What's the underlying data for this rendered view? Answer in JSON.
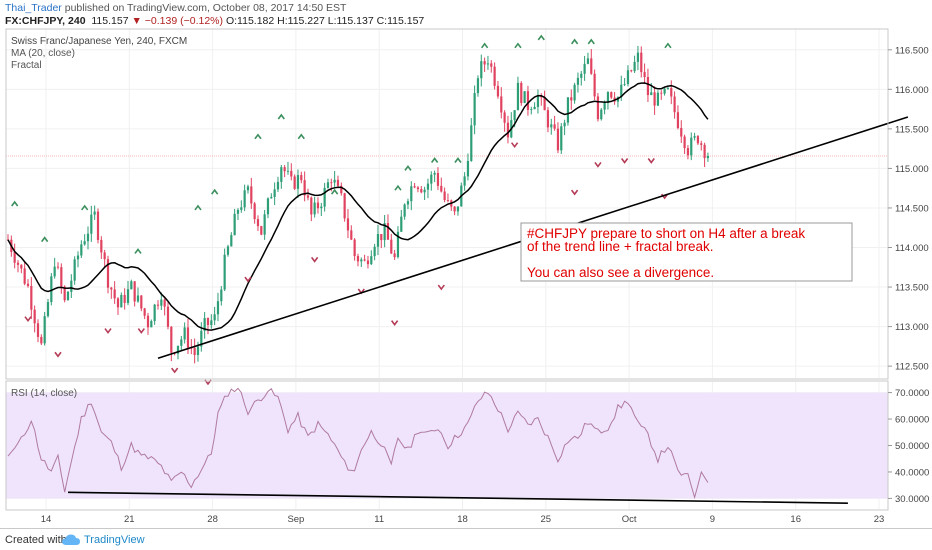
{
  "header": {
    "user": "Thai_Trader",
    "published": "published on TradingView.com, October 08, 2017 14:50 EST",
    "symbol": "FX:CHFJPY, 240",
    "price": "115.157",
    "change": "▼ −0.139 (−0.12%)",
    "ohlc": "O:115.182 H:115.227 L:115.137 C:115.157"
  },
  "legend": {
    "instrument": "Swiss Franc/Japanese Yen, 240, FXCM",
    "ma": "MA (20, close)",
    "fractal": "Fractal",
    "rsi": "RSI (14, close)"
  },
  "annotation": {
    "line1": "#CHFJPY prepare to short on H4 after a break",
    "line2": "of the trend line + fractal break.",
    "line3": "You can also see a divergence."
  },
  "footer": {
    "created": "Created with",
    "brand": "TradingView"
  },
  "colors": {
    "bull": "#2e9e76",
    "bear": "#e0425f",
    "annotation_text": "#e00000",
    "rsi_band": "#efe4fc",
    "rsi_line": "#b07aa0",
    "ma": "#000000",
    "fractal_up": "#3a8f5c",
    "fractal_down": "#b53b57"
  },
  "chart_data": [
    {
      "type": "candlestick",
      "title": "Swiss Franc/Japanese Yen, 240, FXCM",
      "ylim": [
        112.35,
        116.75
      ],
      "y_ticks": [
        "116.500",
        "116.000",
        "115.500",
        "115.000",
        "114.500",
        "114.000",
        "113.500",
        "113.000",
        "112.500"
      ],
      "x_ticks": [
        "14",
        "21",
        "28",
        "Sep",
        "11",
        "18",
        "25",
        "Oct",
        "9",
        "16",
        "23"
      ],
      "last_price": 115.157,
      "price_path": [
        [
          0,
          114.1
        ],
        [
          6,
          113.5
        ],
        [
          10,
          112.75
        ],
        [
          14,
          113.85
        ],
        [
          17,
          113.3
        ],
        [
          22,
          114.05
        ],
        [
          26,
          114.4
        ],
        [
          30,
          113.6
        ],
        [
          33,
          113.25
        ],
        [
          37,
          113.5
        ],
        [
          42,
          113.05
        ],
        [
          46,
          113.45
        ],
        [
          49,
          112.7
        ],
        [
          53,
          112.9
        ],
        [
          56,
          112.65
        ],
        [
          59,
          113.0
        ],
        [
          62,
          113.1
        ],
        [
          65,
          113.8
        ],
        [
          69,
          114.5
        ],
        [
          72,
          114.7
        ],
        [
          76,
          114.2
        ],
        [
          79,
          114.7
        ],
        [
          82,
          115.05
        ],
        [
          85,
          114.8
        ],
        [
          88,
          114.9
        ],
        [
          91,
          114.4
        ],
        [
          94,
          114.6
        ],
        [
          97,
          114.9
        ],
        [
          100,
          114.6
        ],
        [
          104,
          113.9
        ],
        [
          107,
          113.8
        ],
        [
          110,
          114.1
        ],
        [
          113,
          114.2
        ],
        [
          116,
          113.85
        ],
        [
          119,
          114.6
        ],
        [
          122,
          114.85
        ],
        [
          125,
          114.75
        ],
        [
          128,
          114.95
        ],
        [
          131,
          114.6
        ],
        [
          134,
          114.4
        ],
        [
          137,
          114.9
        ],
        [
          139,
          115.5
        ],
        [
          141,
          116.2
        ],
        [
          144,
          116.4
        ],
        [
          147,
          116.0
        ],
        [
          150,
          115.45
        ],
        [
          153,
          116.0
        ],
        [
          156,
          115.8
        ],
        [
          159,
          115.9
        ],
        [
          162,
          115.6
        ],
        [
          165,
          115.3
        ],
        [
          168,
          115.8
        ],
        [
          171,
          116.1
        ],
        [
          174,
          116.35
        ],
        [
          177,
          115.7
        ],
        [
          180,
          116.0
        ],
        [
          183,
          115.9
        ],
        [
          186,
          116.15
        ],
        [
          189,
          116.4
        ],
        [
          192,
          115.95
        ],
        [
          195,
          115.85
        ],
        [
          198,
          115.95
        ],
        [
          201,
          115.6
        ],
        [
          204,
          115.25
        ],
        [
          207,
          115.4
        ],
        [
          210,
          115.16
        ]
      ],
      "ma_period": 20,
      "fractals_up": [
        [
          2,
          114.55
        ],
        [
          11,
          114.1
        ],
        [
          23,
          114.5
        ],
        [
          39,
          113.95
        ],
        [
          57,
          114.5
        ],
        [
          62,
          114.7
        ],
        [
          75,
          115.4
        ],
        [
          82,
          115.65
        ],
        [
          88,
          115.4
        ],
        [
          98,
          114.7
        ],
        [
          117,
          114.75
        ],
        [
          120,
          115.0
        ],
        [
          128,
          115.1
        ],
        [
          135,
          115.1
        ],
        [
          143,
          116.55
        ],
        [
          148,
          116.95
        ],
        [
          153,
          116.55
        ],
        [
          160,
          116.65
        ],
        [
          170,
          116.6
        ],
        [
          175,
          116.6
        ],
        [
          186,
          116.9
        ],
        [
          198,
          116.55
        ]
      ],
      "fractals_down": [
        [
          6,
          113.1
        ],
        [
          15,
          112.65
        ],
        [
          30,
          112.95
        ],
        [
          40,
          112.95
        ],
        [
          50,
          112.45
        ],
        [
          60,
          112.3
        ],
        [
          72,
          113.6
        ],
        [
          92,
          113.85
        ],
        [
          106,
          113.45
        ],
        [
          116,
          113.05
        ],
        [
          130,
          113.5
        ],
        [
          152,
          115.3
        ],
        [
          170,
          114.7
        ],
        [
          177,
          115.05
        ],
        [
          185,
          115.1
        ],
        [
          193,
          115.1
        ],
        [
          197,
          114.65
        ]
      ],
      "trend_line": [
        [
          45,
          112.6
        ],
        [
          270,
          115.65
        ]
      ],
      "callout_anchor": 175
    },
    {
      "type": "line",
      "title": "RSI (14, close)",
      "ylim": [
        26,
        74
      ],
      "y_ticks": [
        "70.0000",
        "60.0000",
        "50.0000",
        "40.0000",
        "30.0000"
      ],
      "band": [
        30,
        70
      ],
      "values_path": [
        [
          0,
          46
        ],
        [
          4,
          52
        ],
        [
          7,
          60
        ],
        [
          10,
          45
        ],
        [
          13,
          40
        ],
        [
          15,
          45
        ],
        [
          17,
          33
        ],
        [
          19,
          44
        ],
        [
          22,
          60
        ],
        [
          25,
          67
        ],
        [
          28,
          55
        ],
        [
          31,
          51
        ],
        [
          34,
          42
        ],
        [
          37,
          50
        ],
        [
          40,
          46
        ],
        [
          43,
          45
        ],
        [
          46,
          42
        ],
        [
          49,
          36
        ],
        [
          52,
          40
        ],
        [
          55,
          35
        ],
        [
          58,
          41
        ],
        [
          61,
          47
        ],
        [
          63,
          62
        ],
        [
          66,
          70
        ],
        [
          69,
          72
        ],
        [
          72,
          63
        ],
        [
          75,
          67
        ],
        [
          78,
          71
        ],
        [
          81,
          68
        ],
        [
          84,
          56
        ],
        [
          87,
          61
        ],
        [
          90,
          53
        ],
        [
          93,
          58
        ],
        [
          96,
          54
        ],
        [
          99,
          48
        ],
        [
          101,
          43
        ],
        [
          104,
          40
        ],
        [
          106,
          49
        ],
        [
          109,
          55
        ],
        [
          112,
          51
        ],
        [
          115,
          42
        ],
        [
          117,
          53
        ],
        [
          120,
          48
        ],
        [
          123,
          56
        ],
        [
          126,
          54
        ],
        [
          129,
          57
        ],
        [
          132,
          50
        ],
        [
          135,
          54
        ],
        [
          138,
          58
        ],
        [
          141,
          67
        ],
        [
          144,
          70
        ],
        [
          147,
          64
        ],
        [
          150,
          56
        ],
        [
          153,
          62
        ],
        [
          156,
          58
        ],
        [
          159,
          60
        ],
        [
          162,
          53
        ],
        [
          165,
          45
        ],
        [
          168,
          52
        ],
        [
          171,
          53
        ],
        [
          174,
          59
        ],
        [
          177,
          55
        ],
        [
          180,
          57
        ],
        [
          183,
          64
        ],
        [
          186,
          67
        ],
        [
          189,
          58
        ],
        [
          192,
          54
        ],
        [
          195,
          45
        ],
        [
          198,
          50
        ],
        [
          201,
          40
        ],
        [
          204,
          38
        ],
        [
          206,
          31
        ],
        [
          208,
          40
        ],
        [
          210,
          36
        ]
      ],
      "divergence_line": [
        [
          18,
          32.3
        ],
        [
          252,
          28.2
        ]
      ]
    }
  ]
}
